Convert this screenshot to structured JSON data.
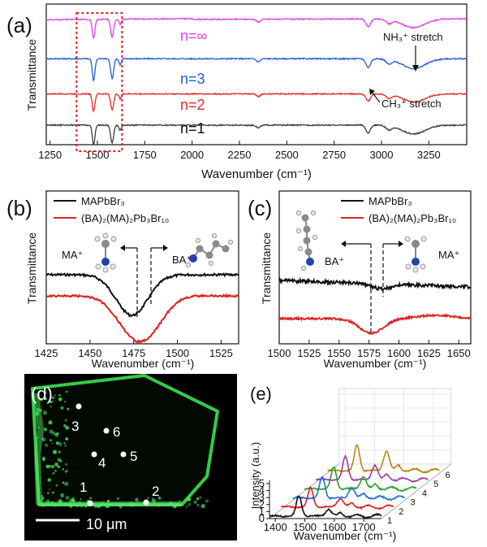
{
  "chart_data": [
    {
      "panel": "(a)",
      "type": "line",
      "xlabel": "Wavenumber (cm⁻¹)",
      "ylabel": "Transmittance",
      "xlim": [
        1230,
        3450
      ],
      "x_ticks": [
        1250,
        1500,
        1750,
        2000,
        2250,
        2500,
        2750,
        3000,
        3250
      ],
      "series": [
        {
          "name": "n=∞",
          "color": "#e040e8",
          "offset": 3.2
        },
        {
          "name": "n=3",
          "color": "#1f5fd6",
          "offset": 2.2
        },
        {
          "name": "n=2",
          "color": "#e02a2a",
          "offset": 1.3
        },
        {
          "name": "n=1",
          "color": "#3a3a3a",
          "offset": 0.5
        }
      ],
      "annotations": [
        {
          "text": "NH₃⁺ stretch"
        },
        {
          "text": "CH₃⁺ stretch"
        }
      ],
      "highlight_range": [
        1390,
        1630
      ]
    },
    {
      "panel": "(b)",
      "type": "line",
      "xlabel": "Wavenumber (cm⁻¹)",
      "ylabel": "Transmittance",
      "xlim": [
        1425,
        1535
      ],
      "x_ticks": [
        1425,
        1450,
        1475,
        1500,
        1525
      ],
      "series": [
        {
          "name": "MAPbBr₃",
          "color": "#111111",
          "dip": 1474
        },
        {
          "name": "(BA)₂(MA)₂Pb₃Br₁₀",
          "color": "#e02020",
          "dip": 1476
        }
      ],
      "annotations": [
        {
          "text": "MA⁺"
        },
        {
          "text": "BA⁺"
        }
      ]
    },
    {
      "panel": "(c)",
      "type": "line",
      "xlabel": "Wavenumber (cm⁻¹)",
      "ylabel": "Transmittance",
      "xlim": [
        1500,
        1660
      ],
      "x_ticks": [
        1500,
        1525,
        1550,
        1575,
        1600,
        1625,
        1650
      ],
      "series": [
        {
          "name": "MAPbBr₃",
          "color": "#111111"
        },
        {
          "name": "(BA)₂(MA)₂Pb₃Br₁₀",
          "color": "#e02020",
          "dip": 1577
        }
      ],
      "annotations": [
        {
          "text": "BA⁺"
        },
        {
          "text": "MA⁺"
        }
      ]
    },
    {
      "panel": "(d)",
      "type": "image",
      "points": [
        "1",
        "2",
        "3",
        "4",
        "5",
        "6"
      ],
      "scale_bar": "10 μm"
    },
    {
      "panel": "(e)",
      "type": "line",
      "xlabel": "Wavenumber (cm⁻¹)",
      "ylabel": "Intensity (a.u.)",
      "x_ticks": [
        1400,
        1500,
        1600,
        1700
      ],
      "y_ticks": [
        0,
        1,
        2,
        3,
        4,
        5
      ],
      "depth_labels": [
        "1",
        "2",
        "3",
        "4",
        "5",
        "6"
      ],
      "series": [
        {
          "name": "1",
          "color": "#111111"
        },
        {
          "name": "2",
          "color": "#e02020"
        },
        {
          "name": "3",
          "color": "#1f6fe0"
        },
        {
          "name": "4",
          "color": "#2aa02a"
        },
        {
          "name": "5",
          "color": "#9a3aa8"
        },
        {
          "name": "6",
          "color": "#b8860b"
        }
      ]
    }
  ]
}
